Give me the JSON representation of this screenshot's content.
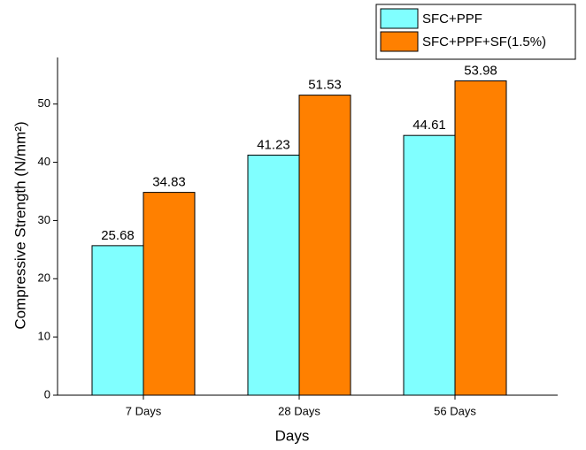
{
  "chart_data": {
    "type": "bar",
    "x_label": "Days",
    "y_label": "Compressive Strength (N/mm²)",
    "categories": [
      "7 Days",
      "28 Days",
      "56 Days"
    ],
    "series": [
      {
        "name": "SFC+PPF",
        "color": "#80ffff",
        "values": [
          25.68,
          41.23,
          44.61
        ]
      },
      {
        "name": "SFC+PPF+SF(1.5%)",
        "color": "#ff8000",
        "values": [
          34.83,
          51.53,
          53.98
        ]
      }
    ],
    "ylim": [
      0,
      58
    ],
    "yticks": [
      0,
      10,
      20,
      30,
      40,
      50
    ],
    "legend": "top-right"
  }
}
